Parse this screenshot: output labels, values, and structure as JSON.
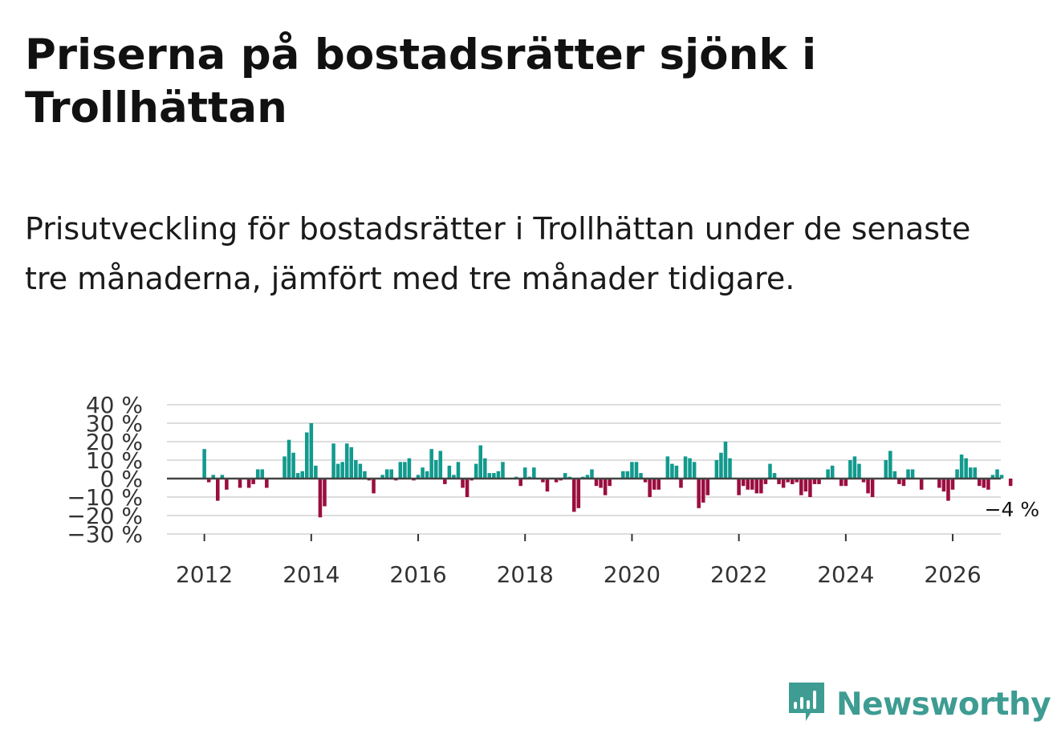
{
  "header": {
    "title": "Priserna på bostadsrätter sjönk i Trollhättan",
    "subtitle": "Prisutveckling för bostadsrätter i Trollhättan under de senaste tre månaderna, jämfört med tre månader tidigare."
  },
  "chart_data": {
    "type": "bar",
    "title": "Priserna på bostadsrätter sjönk i Trollhättan",
    "subtitle": "Prisutveckling för bostadsrätter i Trollhättan under de senaste tre månaderna, jämfört med tre månader tidigare.",
    "xlabel": "",
    "ylabel": "",
    "ylim": [
      -30,
      40
    ],
    "xlim": [
      2011.3,
      2026.9
    ],
    "y_ticks": [
      40,
      30,
      20,
      10,
      0,
      -10,
      -20,
      -30
    ],
    "y_tick_labels": [
      "40 %",
      "30 %",
      "20 %",
      "10 %",
      "0 %",
      "−10 %",
      "−20 %",
      "−30 %"
    ],
    "x_ticks": [
      2012,
      2014,
      2016,
      2018,
      2020,
      2022,
      2024,
      2026
    ],
    "x_tick_labels": [
      "2012",
      "2014",
      "2016",
      "2018",
      "2020",
      "2022",
      "2024",
      "2026"
    ],
    "colors": {
      "positive": "#129a8e",
      "negative": "#9a0e40",
      "grid": "#dddddd",
      "zero": "#444444"
    },
    "grid": true,
    "legend": "none",
    "start": 2012.0,
    "step": 0.08333,
    "values": [
      16,
      -2,
      2,
      -12,
      2,
      -6,
      0,
      0,
      -5,
      0,
      -5,
      -3,
      5,
      5,
      -5,
      0,
      0,
      0,
      12,
      21,
      14,
      3,
      4,
      25,
      30,
      7,
      -21,
      -15,
      0,
      19,
      8,
      9,
      19,
      17,
      10,
      8,
      4,
      -1,
      -8,
      0,
      2,
      5,
      5,
      -1,
      9,
      9,
      11,
      -1,
      2,
      6,
      4,
      16,
      10,
      15,
      -3,
      7,
      2,
      9,
      -5,
      -10,
      -1,
      8,
      18,
      11,
      3,
      3,
      4,
      9,
      0,
      0,
      1,
      -4,
      6,
      1,
      6,
      0,
      -2,
      -7,
      0,
      -2,
      -1,
      3,
      1,
      -18,
      -16,
      1,
      2,
      5,
      -4,
      -5,
      -9,
      -4,
      0,
      0,
      4,
      4,
      9,
      9,
      3,
      -2,
      -10,
      -6,
      -6,
      0,
      12,
      8,
      7,
      -5,
      12,
      11,
      9,
      -16,
      -13,
      -9,
      0,
      10,
      14,
      20,
      11,
      0,
      -9,
      -4,
      -6,
      -6,
      -8,
      -8,
      -3,
      8,
      3,
      -3,
      -5,
      -2,
      -3,
      -2,
      -9,
      -7,
      -10,
      -3,
      -3,
      0,
      5,
      7,
      0,
      -4,
      -4,
      10,
      12,
      8,
      -2,
      -8,
      -10,
      0,
      0,
      10,
      15,
      4,
      -3,
      -4,
      5,
      5,
      0,
      -6,
      0,
      0,
      0,
      -5,
      -7,
      -12,
      -6,
      5,
      13,
      11,
      6,
      6,
      -4,
      -5,
      -6,
      2,
      5,
      2,
      0,
      -4
    ],
    "annotation": {
      "text": "−4 %",
      "value": -4,
      "position": "last-bar"
    }
  },
  "branding": {
    "logo_text": "Newsworthy",
    "logo_color": "#3e9c92"
  }
}
